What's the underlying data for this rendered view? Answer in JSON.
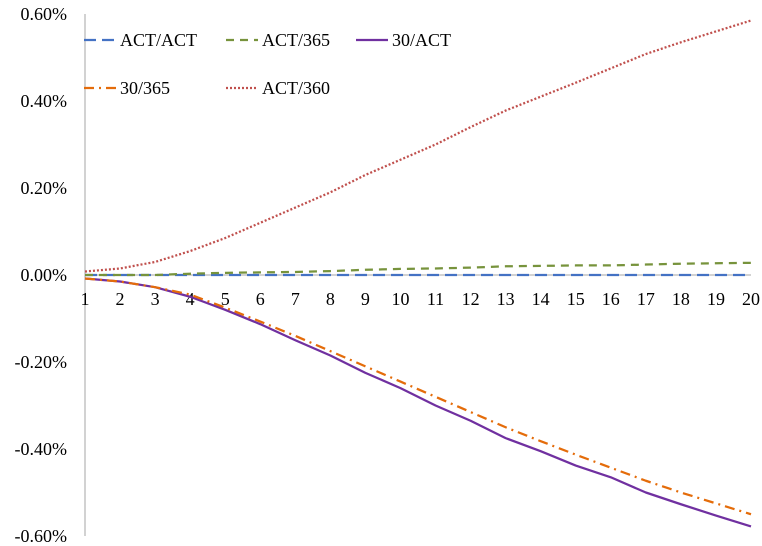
{
  "chart_data": {
    "type": "line",
    "x": [
      1,
      2,
      3,
      4,
      5,
      6,
      7,
      8,
      9,
      10,
      11,
      12,
      13,
      14,
      15,
      16,
      17,
      18,
      19,
      20
    ],
    "x_tick_labels": [
      "1",
      "2",
      "3",
      "4",
      "5",
      "6",
      "7",
      "8",
      "9",
      "10",
      "11",
      "12",
      "13",
      "14",
      "15",
      "16",
      "17",
      "18",
      "19",
      "20"
    ],
    "ylim": [
      -0.6,
      0.6
    ],
    "y_ticks": [
      -0.6,
      -0.4,
      -0.2,
      0.0,
      0.2,
      0.4,
      0.6
    ],
    "y_tick_labels": [
      "-0.60%",
      "-0.40%",
      "-0.20%",
      "0.00%",
      "0.20%",
      "0.40%",
      "0.60%"
    ],
    "y_unit": "%",
    "grid": false,
    "legend_position": "top-left",
    "series": [
      {
        "name": "ACT/ACT",
        "color": "#4472C4",
        "dash": "long-dash",
        "values": [
          0.0,
          0.0,
          0.0,
          0.0,
          0.0,
          0.0,
          0.0,
          0.0,
          0.0,
          0.0,
          0.0,
          0.0,
          0.0,
          0.0,
          0.0,
          0.0,
          0.0,
          0.0,
          0.0,
          0.0
        ]
      },
      {
        "name": "ACT/365",
        "color": "#77933C",
        "dash": "dash",
        "values": [
          0.0,
          0.0,
          0.0,
          0.003,
          0.005,
          0.006,
          0.007,
          0.009,
          0.012,
          0.014,
          0.015,
          0.017,
          0.02,
          0.021,
          0.022,
          0.022,
          0.024,
          0.026,
          0.027,
          0.028
        ]
      },
      {
        "name": "30/ACT",
        "color": "#7030A0",
        "dash": "solid",
        "values": [
          -0.008,
          -0.015,
          -0.028,
          -0.05,
          -0.08,
          -0.113,
          -0.15,
          -0.185,
          -0.225,
          -0.26,
          -0.3,
          -0.335,
          -0.375,
          -0.405,
          -0.438,
          -0.465,
          -0.5,
          -0.527,
          -0.553,
          -0.578
        ]
      },
      {
        "name": "30/365",
        "color": "#E46C0A",
        "dash": "dash-dot",
        "values": [
          -0.008,
          -0.015,
          -0.028,
          -0.045,
          -0.075,
          -0.107,
          -0.14,
          -0.175,
          -0.21,
          -0.245,
          -0.28,
          -0.315,
          -0.35,
          -0.382,
          -0.413,
          -0.443,
          -0.473,
          -0.5,
          -0.525,
          -0.55
        ]
      },
      {
        "name": "ACT/360",
        "color": "#C0504D",
        "dash": "dot",
        "values": [
          0.008,
          0.015,
          0.03,
          0.055,
          0.085,
          0.12,
          0.155,
          0.19,
          0.23,
          0.265,
          0.3,
          0.34,
          0.378,
          0.41,
          0.442,
          0.475,
          0.508,
          0.535,
          0.56,
          0.585
        ]
      }
    ]
  }
}
